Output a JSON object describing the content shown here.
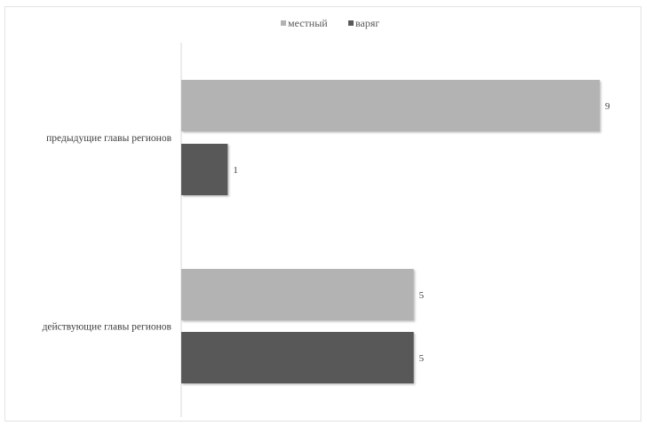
{
  "chart_data": {
    "type": "bar",
    "orientation": "horizontal",
    "categories": [
      "предыдущие главы регионов",
      "действующие главы регионов"
    ],
    "series": [
      {
        "name": "местный",
        "values": [
          9,
          5
        ],
        "color": "#b3b3b3"
      },
      {
        "name": "варяг",
        "values": [
          1,
          5
        ],
        "color": "#595959"
      }
    ],
    "xlim": [
      0,
      9
    ],
    "legend_position": "top",
    "grid": false,
    "title": "",
    "xlabel": "",
    "ylabel": ""
  }
}
